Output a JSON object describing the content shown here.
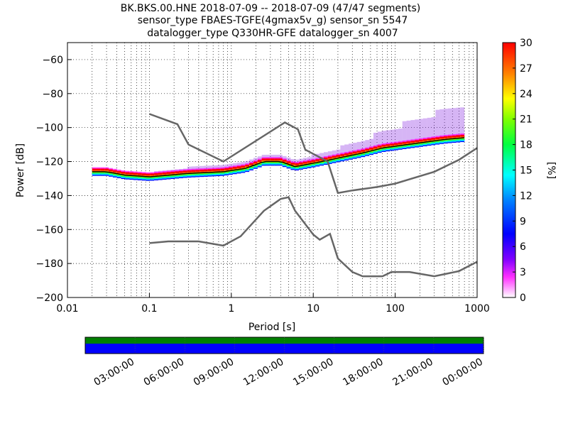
{
  "chart_data": {
    "type": "heatmap",
    "title": [
      "BK.BKS.00.HNE   2018-07-09 -- 2018-07-09  (47/47 segments)",
      "sensor_type FBAES-TGFE(4gmax5v_g) sensor_sn 5547",
      "datalogger_type Q330HR-GFE datalogger_sn 4007"
    ],
    "xlabel": "Period [s]",
    "ylabel": "Power [dB]",
    "xscale": "log",
    "xlim": [
      0.01,
      1000
    ],
    "ylim": [
      -200,
      -50
    ],
    "xticks": [
      {
        "v": 0.01,
        "label": "0.01"
      },
      {
        "v": 0.1,
        "label": "0.1"
      },
      {
        "v": 1,
        "label": "1"
      },
      {
        "v": 10,
        "label": "10"
      },
      {
        "v": 100,
        "label": "100"
      },
      {
        "v": 1000,
        "label": "1000"
      }
    ],
    "yticks": [
      -200,
      -180,
      -160,
      -140,
      -120,
      -100,
      -80,
      -60
    ],
    "grid": true,
    "colorbar": {
      "label": "[%]",
      "min": 0,
      "max": 30,
      "ticks": [
        0,
        3,
        6,
        9,
        12,
        15,
        18,
        21,
        24,
        27,
        30
      ]
    },
    "noise_models": [
      {
        "x": [
          0.1,
          0.22,
          0.3,
          0.8,
          4.5,
          6.5,
          8,
          15,
          20,
          30,
          60,
          100,
          300,
          600,
          1000
        ],
        "y": [
          -92,
          -98,
          -110,
          -120,
          -97,
          -101,
          -113,
          -120,
          -138.5,
          -137,
          -135,
          -133,
          -126,
          -119,
          -112
        ]
      },
      {
        "x": [
          0.1,
          0.17,
          0.4,
          0.8,
          1.3,
          2.5,
          4,
          5,
          6,
          10,
          12,
          16,
          20,
          30,
          40,
          70,
          90,
          150,
          300,
          600,
          1000
        ],
        "y": [
          -168,
          -167,
          -167,
          -169.5,
          -164,
          -149,
          -142,
          -141,
          -149,
          -163,
          -166,
          -162.5,
          -177,
          -185,
          -187.5,
          -187.5,
          -185,
          -185,
          -187.5,
          -184.5,
          -179
        ]
      }
    ],
    "psd_median": {
      "x": [
        0.02,
        0.03,
        0.05,
        0.1,
        0.3,
        0.8,
        1.5,
        2.5,
        4,
        6,
        10,
        20,
        40,
        70,
        100,
        200,
        400,
        700
      ],
      "y": [
        -126,
        -126,
        -128,
        -129,
        -127,
        -126,
        -124,
        -120,
        -120,
        -123,
        -121,
        -118,
        -115,
        -112,
        -111,
        -109,
        -107,
        -106
      ]
    },
    "psd_spread": [
      0,
      2,
      3,
      4,
      4,
      4,
      4,
      5,
      7,
      10,
      14,
      18
    ]
  },
  "timeline": {
    "ticks": [
      "03:00:00",
      "06:00:00",
      "09:00:00",
      "12:00:00",
      "15:00:00",
      "18:00:00",
      "21:00:00",
      "00:00:00"
    ],
    "data_color": "#008000",
    "gap_color": "#0000ff"
  }
}
